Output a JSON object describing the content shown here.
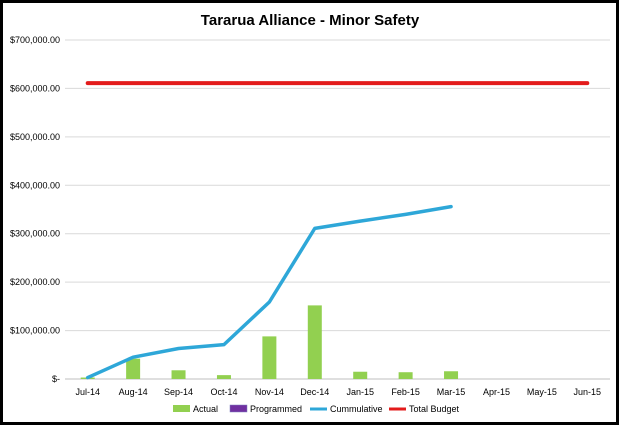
{
  "chart_data": {
    "type": "bar",
    "title": "Tararua  Alliance - Minor Safety",
    "xlabel": "",
    "ylabel": "",
    "categories": [
      "Jul-14",
      "Aug-14",
      "Sep-14",
      "Oct-14",
      "Nov-14",
      "Dec-14",
      "Jan-15",
      "Feb-15",
      "Mar-15",
      "Apr-15",
      "May-15",
      "Jun-15"
    ],
    "ylim": [
      0,
      700000
    ],
    "y_ticks": [
      0,
      100000,
      200000,
      300000,
      400000,
      500000,
      600000,
      700000
    ],
    "y_tick_labels": [
      "$-",
      "$100,000.00",
      "$200,000.00",
      "$300,000.00",
      "$400,000.00",
      "$500,000.00",
      "$600,000.00",
      "$700,000.00"
    ],
    "grid": true,
    "legend_position": "bottom",
    "series": [
      {
        "name": "Actual",
        "type": "bar",
        "color": "#92d050",
        "values": [
          3000,
          42000,
          18000,
          8000,
          88000,
          152000,
          15000,
          14000,
          16000,
          null,
          null,
          null
        ]
      },
      {
        "name": "Programmed",
        "type": "bar",
        "color": "#7030a0",
        "values": [
          null,
          null,
          null,
          null,
          null,
          null,
          null,
          null,
          null,
          null,
          null,
          null
        ]
      },
      {
        "name": "Cummulative",
        "type": "line",
        "color": "#2ea7d8",
        "values": [
          3000,
          45000,
          63000,
          71000,
          159000,
          311000,
          326000,
          340000,
          356000,
          null,
          null,
          null
        ]
      },
      {
        "name": "Total Budget",
        "type": "line",
        "color": "#e31b1b",
        "values": [
          611000,
          611000,
          611000,
          611000,
          611000,
          611000,
          611000,
          611000,
          611000,
          611000,
          611000,
          611000
        ]
      }
    ]
  }
}
